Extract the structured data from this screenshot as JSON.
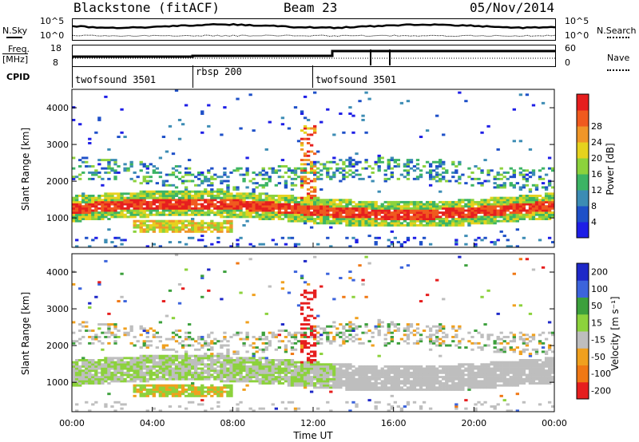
{
  "header": {
    "station": "Blackstone (fitACF)",
    "beam": "Beam 23",
    "date": "05/Nov/2014"
  },
  "panels": {
    "noise": {
      "left_label": "N.Sky",
      "right_label": "N.Search",
      "left_ticks": [
        "10^5",
        "10^0"
      ],
      "right_ticks": [
        "10^5",
        "10^0"
      ]
    },
    "freq": {
      "left_label": "Freq.",
      "left_unit": "[MHz]",
      "right_label": "Nave",
      "left_ticks": [
        "18",
        "8"
      ],
      "right_ticks": [
        "60",
        "0"
      ]
    },
    "cpid": {
      "label": "CPID",
      "segments": [
        {
          "name": "twofsound 3501",
          "start": "00:00"
        },
        {
          "name": "rbsp 200",
          "start": "06:00"
        },
        {
          "name": "twofsound 3501",
          "start": "12:00"
        }
      ]
    }
  },
  "chart_data": [
    {
      "type": "heatmap",
      "title": "",
      "xlabel": "Time UT",
      "ylabel": "Slant Range [km]",
      "xlim": [
        "00:00",
        "24:00"
      ],
      "ylim": [
        200,
        4500
      ],
      "x_ticks": [
        "00:00",
        "04:00",
        "08:00",
        "12:00",
        "16:00",
        "20:00",
        "00:00"
      ],
      "y_ticks": [
        1000,
        2000,
        3000,
        4000
      ],
      "colorbar": {
        "label": "Power [dB]",
        "ticks": [
          4,
          8,
          12,
          16,
          20,
          24,
          28
        ],
        "range": [
          0,
          32
        ],
        "colors": [
          "#1e1ee6",
          "#1e50c8",
          "#3c8cb4",
          "#3cb464",
          "#8cd23c",
          "#e6d21e",
          "#f09628",
          "#f05a1e",
          "#e61e1e"
        ]
      },
      "features": [
        {
          "desc": "main band",
          "start_h": 0,
          "end_h": 24,
          "range_km": [
            900,
            1600
          ],
          "typical_dB": 24
        },
        {
          "desc": "upper band",
          "start_h": 0,
          "end_h": 24,
          "range_km": [
            1900,
            2600
          ],
          "typical_dB": 12
        },
        {
          "desc": "early low band",
          "start_h": 3,
          "end_h": 8,
          "range_km": [
            600,
            950
          ],
          "typical_dB": 20
        }
      ]
    },
    {
      "type": "heatmap",
      "title": "",
      "xlabel": "Time UT",
      "ylabel": "Slant Range [km]",
      "xlim": [
        "00:00",
        "24:00"
      ],
      "ylim": [
        200,
        4500
      ],
      "x_ticks": [
        "00:00",
        "04:00",
        "08:00",
        "12:00",
        "16:00",
        "20:00",
        "00:00"
      ],
      "y_ticks": [
        1000,
        2000,
        3000,
        4000
      ],
      "colorbar": {
        "label": "Velocity [m s⁻¹]",
        "ticks": [
          200,
          100,
          50,
          15,
          -15,
          -50,
          -100,
          -200
        ],
        "colors": [
          "#1e28c8",
          "#3c64dc",
          "#3ca03c",
          "#8cd23c",
          "#bebebe",
          "#f0a01e",
          "#f07814",
          "#e61e1e"
        ]
      }
    }
  ],
  "time_axis": {
    "label": "Time UT",
    "ticks": [
      "00:00",
      "04:00",
      "08:00",
      "12:00",
      "16:00",
      "20:00",
      "00:00"
    ]
  }
}
